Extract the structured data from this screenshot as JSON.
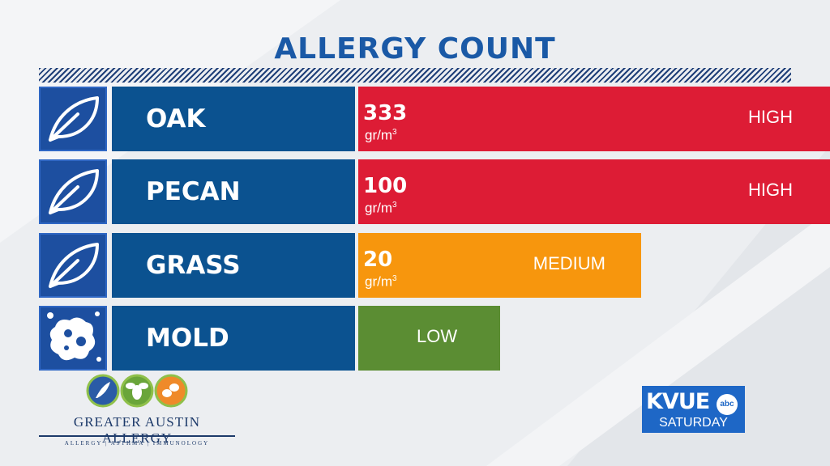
{
  "title": "ALLERGY COUNT",
  "colors": {
    "high": "#dd1c35",
    "medium": "#f7960d",
    "low": "#5b8d33",
    "label_bg": "#0b5290",
    "icon_bg": "#1d4fa0"
  },
  "chart_data": {
    "type": "bar",
    "title": "ALLERGY COUNT",
    "unit": "gr/m³",
    "categories": [
      "OAK",
      "PECAN",
      "GRASS",
      "MOLD"
    ],
    "rows": [
      {
        "name": "OAK",
        "icon": "leaf-icon",
        "value": "333",
        "unit": "gr/m",
        "unit_sup": "3",
        "level": "HIGH",
        "color": "#dd1c35",
        "fill": 1.0
      },
      {
        "name": "PECAN",
        "icon": "leaf-icon",
        "value": "100",
        "unit": "gr/m",
        "unit_sup": "3",
        "level": "HIGH",
        "color": "#dd1c35",
        "fill": 1.0
      },
      {
        "name": "GRASS",
        "icon": "leaf-icon",
        "value": "20",
        "unit": "gr/m",
        "unit_sup": "3",
        "level": "MEDIUM",
        "color": "#f7960d",
        "fill": 0.6
      },
      {
        "name": "MOLD",
        "icon": "mold-spore-icon",
        "value": "",
        "unit": "",
        "unit_sup": "",
        "level": "LOW",
        "color": "#5b8d33",
        "fill": 0.3
      }
    ]
  },
  "sponsor": {
    "name": "GREATER AUSTIN ALLERGY",
    "tagline": "ALLERGY | ASTHMA | IMMUNOLOGY",
    "icons": [
      "plant-icon",
      "bee-icon",
      "peanut-icon"
    ]
  },
  "station": {
    "name": "KVUE",
    "network": "abc",
    "day": "SATURDAY"
  }
}
